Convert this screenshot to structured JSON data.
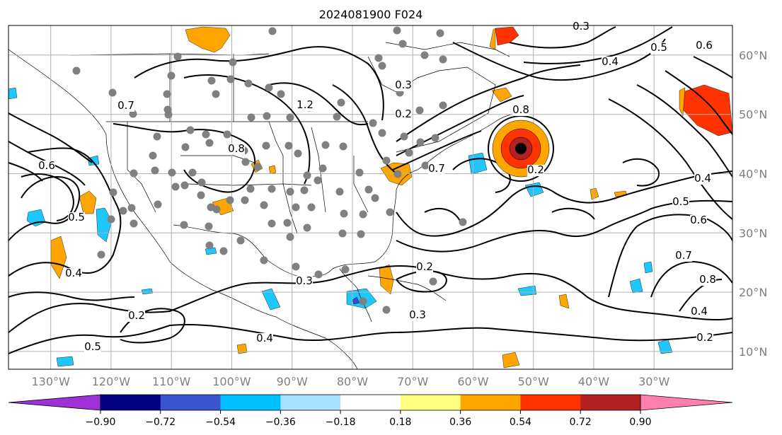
{
  "title": "2024081900 F024",
  "map": {
    "lat_ticks": [
      {
        "label": "60°N",
        "value": 60
      },
      {
        "label": "50°N",
        "value": 50
      },
      {
        "label": "40°N",
        "value": 40
      },
      {
        "label": "30°N",
        "value": 30
      },
      {
        "label": "20°N",
        "value": 20
      },
      {
        "label": "10°N",
        "value": 10
      }
    ],
    "lon_ticks": [
      {
        "label": "130°W",
        "value": -130
      },
      {
        "label": "120°W",
        "value": -120
      },
      {
        "label": "110°W",
        "value": -110
      },
      {
        "label": "100°W",
        "value": -100
      },
      {
        "label": "90°W",
        "value": -90
      },
      {
        "label": "80°W",
        "value": -80
      },
      {
        "label": "70°W",
        "value": -70
      },
      {
        "label": "60°W",
        "value": -60
      },
      {
        "label": "50°W",
        "value": -50
      },
      {
        "label": "40°W",
        "value": -40
      },
      {
        "label": "30°W",
        "value": -30
      }
    ],
    "lon_range": [
      -137,
      -17
    ],
    "lat_range": [
      7,
      65
    ],
    "contour_labels": [
      "0.2",
      "0.3",
      "0.4",
      "0.5",
      "0.6",
      "0.7",
      "0.8",
      "1.2",
      "0.2",
      "0.3",
      "0.4",
      "0.5",
      "0.6",
      "0.7",
      "0.8",
      "0.2",
      "0.3",
      "0.4",
      "0.5",
      "0.2",
      "0.4",
      "0.5",
      "0.6",
      "0.7",
      "0.8",
      "0.3",
      "0.2",
      "0.4"
    ],
    "center_marker": {
      "lon": -55,
      "lat": 44
    },
    "colors": {
      "land_contour": "#000000",
      "grid": "#b0b0b0",
      "dot": "#808080",
      "shade_orange": "#ffa500",
      "shade_red": "#ff3300",
      "shade_blue": "#1ec8ff",
      "shade_darkblue": "#3050d0"
    }
  },
  "colorbar": {
    "colors": [
      "#a030d8",
      "#000080",
      "#3a55d0",
      "#00bfff",
      "#a8e0ff",
      "#ffffff",
      "#ffff80",
      "#ffa500",
      "#ff3300",
      "#b22222",
      "#ff80b0"
    ],
    "ticks": [
      "−0.90",
      "−0.72",
      "−0.54",
      "−0.36",
      "−0.18",
      "0.18",
      "0.36",
      "0.54",
      "0.72",
      "0.90"
    ]
  }
}
